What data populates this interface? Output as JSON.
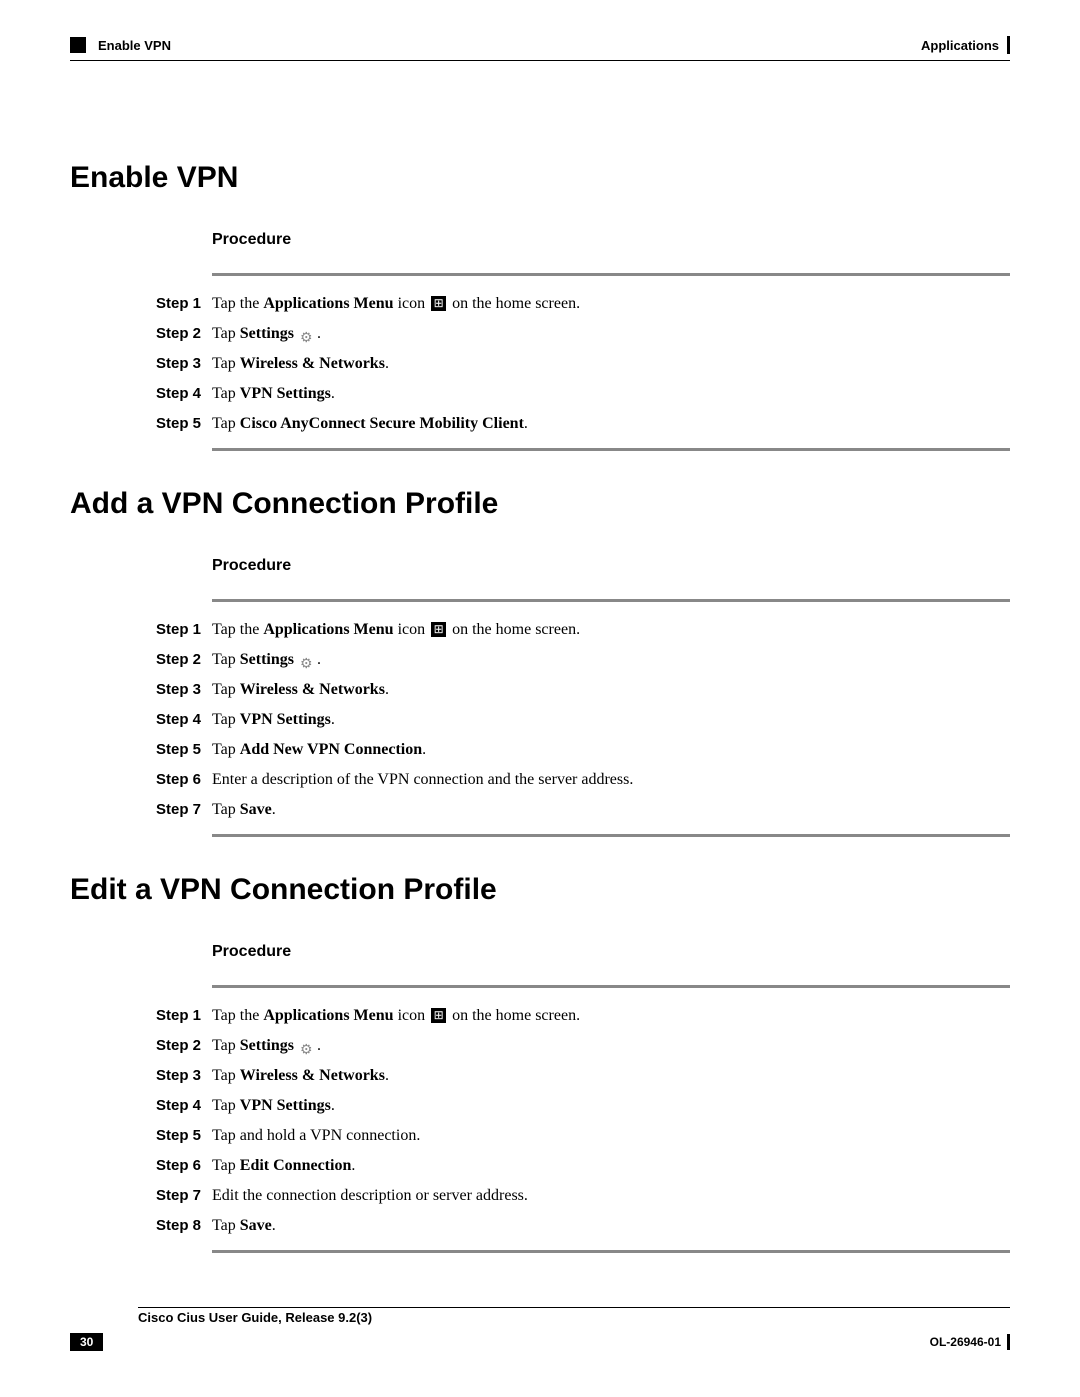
{
  "header": {
    "left": "Enable VPN",
    "right": "Applications"
  },
  "sections": [
    {
      "title": "Enable VPN",
      "procedure_label": "Procedure",
      "steps": [
        {
          "label": "Step 1",
          "parts": [
            {
              "t": "plain",
              "v": "Tap the "
            },
            {
              "t": "bold",
              "v": "Applications Menu"
            },
            {
              "t": "plain",
              "v": " icon "
            },
            {
              "t": "icon",
              "v": "apps"
            },
            {
              "t": "plain",
              "v": " on the home screen."
            }
          ]
        },
        {
          "label": "Step 2",
          "parts": [
            {
              "t": "plain",
              "v": "Tap "
            },
            {
              "t": "bold",
              "v": "Settings"
            },
            {
              "t": "plain",
              "v": " "
            },
            {
              "t": "icon",
              "v": "settings"
            },
            {
              "t": "plain",
              "v": "."
            }
          ]
        },
        {
          "label": "Step 3",
          "parts": [
            {
              "t": "plain",
              "v": "Tap "
            },
            {
              "t": "bold",
              "v": "Wireless & Networks"
            },
            {
              "t": "plain",
              "v": "."
            }
          ]
        },
        {
          "label": "Step 4",
          "parts": [
            {
              "t": "plain",
              "v": "Tap "
            },
            {
              "t": "bold",
              "v": "VPN Settings"
            },
            {
              "t": "plain",
              "v": "."
            }
          ]
        },
        {
          "label": "Step 5",
          "parts": [
            {
              "t": "plain",
              "v": "Tap "
            },
            {
              "t": "bold",
              "v": "Cisco AnyConnect Secure Mobility Client"
            },
            {
              "t": "plain",
              "v": "."
            }
          ]
        }
      ]
    },
    {
      "title": "Add a VPN Connection Profile",
      "procedure_label": "Procedure",
      "steps": [
        {
          "label": "Step 1",
          "parts": [
            {
              "t": "plain",
              "v": "Tap the "
            },
            {
              "t": "bold",
              "v": "Applications Menu"
            },
            {
              "t": "plain",
              "v": " icon "
            },
            {
              "t": "icon",
              "v": "apps"
            },
            {
              "t": "plain",
              "v": " on the home screen."
            }
          ]
        },
        {
          "label": "Step 2",
          "parts": [
            {
              "t": "plain",
              "v": "Tap "
            },
            {
              "t": "bold",
              "v": "Settings"
            },
            {
              "t": "plain",
              "v": " "
            },
            {
              "t": "icon",
              "v": "settings"
            },
            {
              "t": "plain",
              "v": "."
            }
          ]
        },
        {
          "label": "Step 3",
          "parts": [
            {
              "t": "plain",
              "v": "Tap "
            },
            {
              "t": "bold",
              "v": "Wireless & Networks"
            },
            {
              "t": "plain",
              "v": "."
            }
          ]
        },
        {
          "label": "Step 4",
          "parts": [
            {
              "t": "plain",
              "v": "Tap "
            },
            {
              "t": "bold",
              "v": "VPN Settings"
            },
            {
              "t": "plain",
              "v": "."
            }
          ]
        },
        {
          "label": "Step 5",
          "parts": [
            {
              "t": "plain",
              "v": "Tap "
            },
            {
              "t": "bold",
              "v": "Add New VPN Connection"
            },
            {
              "t": "plain",
              "v": "."
            }
          ]
        },
        {
          "label": "Step 6",
          "parts": [
            {
              "t": "plain",
              "v": "Enter a description of the VPN connection and the server address."
            }
          ]
        },
        {
          "label": "Step 7",
          "parts": [
            {
              "t": "plain",
              "v": "Tap "
            },
            {
              "t": "bold",
              "v": "Save"
            },
            {
              "t": "plain",
              "v": "."
            }
          ]
        }
      ]
    },
    {
      "title": "Edit a VPN Connection Profile",
      "procedure_label": "Procedure",
      "steps": [
        {
          "label": "Step 1",
          "parts": [
            {
              "t": "plain",
              "v": "Tap the "
            },
            {
              "t": "bold",
              "v": "Applications Menu"
            },
            {
              "t": "plain",
              "v": " icon "
            },
            {
              "t": "icon",
              "v": "apps"
            },
            {
              "t": "plain",
              "v": " on the home screen."
            }
          ]
        },
        {
          "label": "Step 2",
          "parts": [
            {
              "t": "plain",
              "v": "Tap "
            },
            {
              "t": "bold",
              "v": "Settings"
            },
            {
              "t": "plain",
              "v": " "
            },
            {
              "t": "icon",
              "v": "settings"
            },
            {
              "t": "plain",
              "v": "."
            }
          ]
        },
        {
          "label": "Step 3",
          "parts": [
            {
              "t": "plain",
              "v": "Tap "
            },
            {
              "t": "bold",
              "v": "Wireless & Networks"
            },
            {
              "t": "plain",
              "v": "."
            }
          ]
        },
        {
          "label": "Step 4",
          "parts": [
            {
              "t": "plain",
              "v": "Tap "
            },
            {
              "t": "bold",
              "v": "VPN Settings"
            },
            {
              "t": "plain",
              "v": "."
            }
          ]
        },
        {
          "label": "Step 5",
          "parts": [
            {
              "t": "plain",
              "v": "Tap and hold a VPN connection."
            }
          ]
        },
        {
          "label": "Step 6",
          "parts": [
            {
              "t": "plain",
              "v": "Tap "
            },
            {
              "t": "bold",
              "v": "Edit Connection"
            },
            {
              "t": "plain",
              "v": "."
            }
          ]
        },
        {
          "label": "Step 7",
          "parts": [
            {
              "t": "plain",
              "v": "Edit the connection description or server address."
            }
          ]
        },
        {
          "label": "Step 8",
          "parts": [
            {
              "t": "plain",
              "v": "Tap "
            },
            {
              "t": "bold",
              "v": "Save"
            },
            {
              "t": "plain",
              "v": "."
            }
          ]
        }
      ]
    }
  ],
  "footer": {
    "title": "Cisco Cius User Guide, Release 9.2(3)",
    "page": "30",
    "doc_id": "OL-26946-01"
  }
}
